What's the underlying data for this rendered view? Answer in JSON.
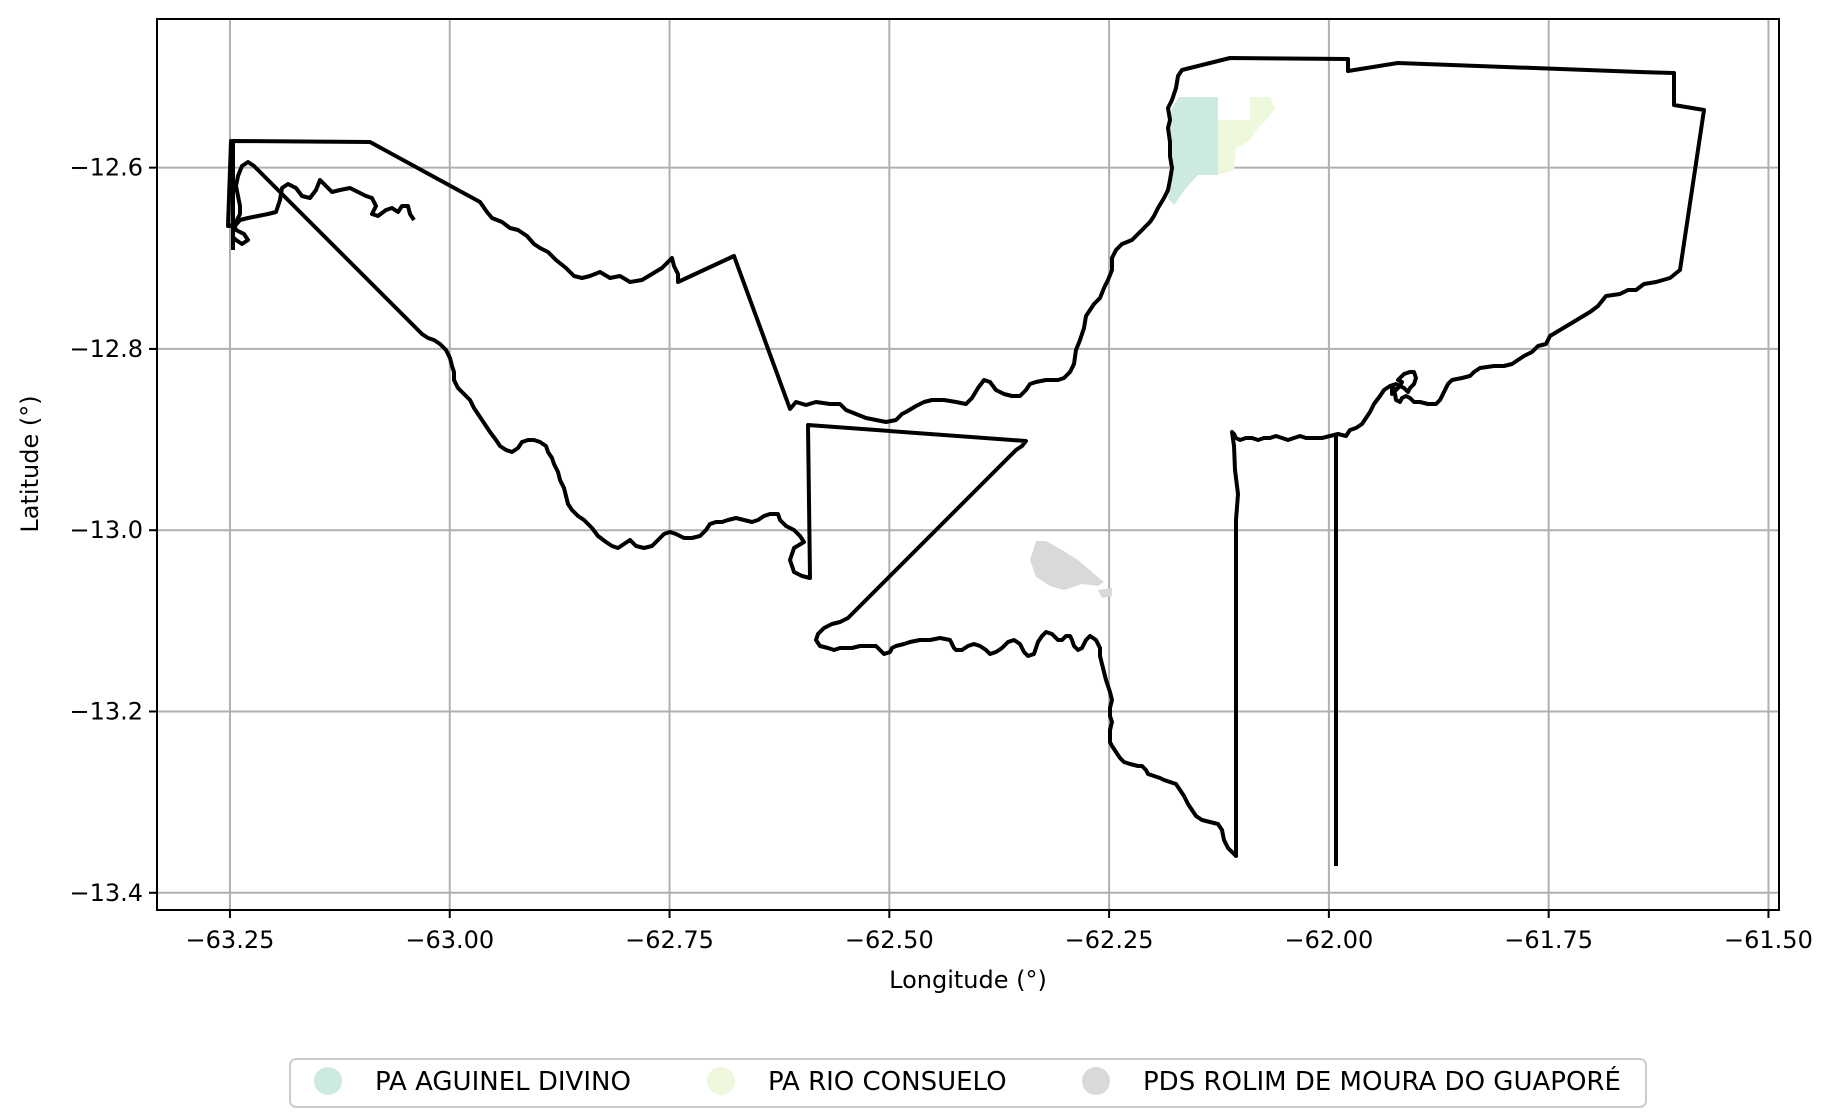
{
  "chart_data": {
    "type": "map",
    "xlabel": "Longitude (°)",
    "ylabel": "Latitude (°)",
    "xlim": [
      -63.333,
      -61.488
    ],
    "ylim": [
      -13.419,
      -12.436
    ],
    "grid": true,
    "x_ticks": [
      -63.25,
      -63.0,
      -62.75,
      -62.5,
      -62.25,
      -62.0,
      -61.75,
      -61.5
    ],
    "x_tick_labels": [
      "−63.25",
      "−63.00",
      "−62.75",
      "−62.50",
      "−62.25",
      "−62.00",
      "−61.75",
      "−61.50"
    ],
    "y_ticks": [
      -12.6,
      -12.8,
      -13.0,
      -13.2,
      -13.4
    ],
    "y_tick_labels": [
      "−12.6",
      "−12.8",
      "−13.0",
      "−13.2",
      "−13.4"
    ],
    "legend_position": "bottom-center",
    "legend": [
      {
        "name": "PA AGUINEL DIVINO",
        "color": "#cdeadf"
      },
      {
        "name": "PA RIO CONSUELO",
        "color": "#eef8dc"
      },
      {
        "name": "PDS ROLIM DE MOURA DO GUAPORÉ",
        "color": "#d9d9d9"
      }
    ],
    "boundary_color": "#000000"
  }
}
